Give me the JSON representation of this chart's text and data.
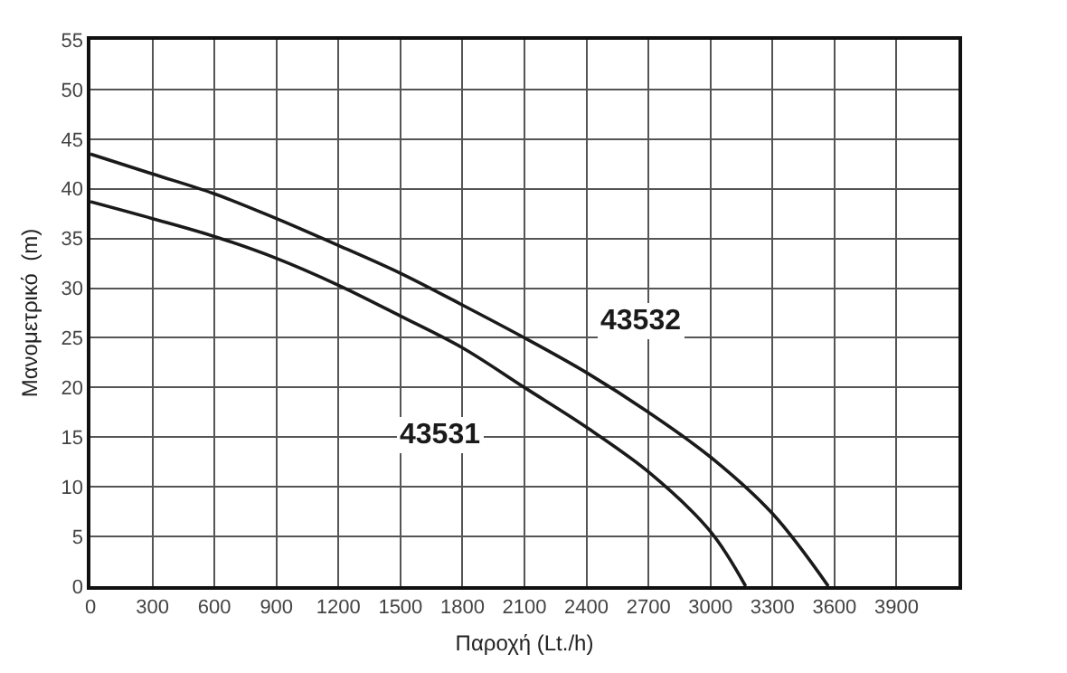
{
  "chart_data": {
    "type": "line",
    "xlabel": "Παροχή (Lt./h)",
    "ylabel": "Μανομετρικό  (m)",
    "series": [
      {
        "name": "43532",
        "color": "#1a1a1a",
        "x": [
          0,
          300,
          600,
          900,
          1200,
          1500,
          1800,
          2100,
          2400,
          2700,
          3000,
          3300,
          3570
        ],
        "values": [
          43.5,
          41.5,
          39.5,
          37,
          34.3,
          31.5,
          28.3,
          25,
          21.5,
          17.5,
          13,
          7.3,
          0
        ]
      },
      {
        "name": "43531",
        "color": "#1a1a1a",
        "x": [
          0,
          300,
          600,
          900,
          1200,
          1500,
          1800,
          2100,
          2400,
          2700,
          3000,
          3170
        ],
        "values": [
          38.7,
          37,
          35.2,
          33,
          30.3,
          27.2,
          24,
          20,
          16,
          11.5,
          5.5,
          0
        ]
      }
    ],
    "xlim": [
      0,
      4200
    ],
    "xticks": [
      0,
      300,
      600,
      900,
      1200,
      1500,
      1800,
      2100,
      2400,
      2700,
      3000,
      3300,
      3600,
      3900
    ],
    "ylim": [
      0,
      55
    ],
    "yticks": [
      0,
      5,
      10,
      15,
      20,
      25,
      30,
      35,
      40,
      45,
      50,
      55
    ],
    "grid": true,
    "legend": false,
    "marker": "none",
    "line_style": "solid"
  }
}
